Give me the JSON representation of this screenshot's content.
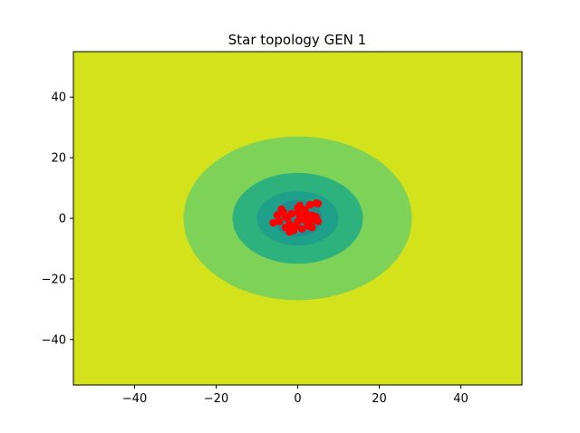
{
  "chart_data": {
    "type": "scatter",
    "title": "Star topology GEN 1",
    "xlabel": "",
    "ylabel": "",
    "xlim": [
      -55,
      55
    ],
    "ylim": [
      -55,
      55
    ],
    "xticks": [
      -40,
      -20,
      0,
      20,
      40
    ],
    "yticks": [
      -40,
      -20,
      0,
      20,
      40
    ],
    "tick_labels_x": [
      "−40",
      "−20",
      "0",
      "20",
      "40"
    ],
    "tick_labels_y": [
      "−40",
      "−20",
      "0",
      "20",
      "40"
    ],
    "grid": false,
    "background_contour": {
      "type": "filled-contour",
      "center": [
        0,
        0
      ],
      "levels": [
        {
          "radius_x": 56,
          "radius_y": 28,
          "color": "#d3e21a"
        },
        {
          "radius_x": 28,
          "radius_y": 27,
          "color": "#7ed257"
        },
        {
          "radius_x": 16,
          "radius_y": 15,
          "color": "#2db27d"
        },
        {
          "radius_x": 10,
          "radius_y": 9,
          "color": "#1fa08a"
        },
        {
          "radius_x": 6,
          "radius_y": 6,
          "color": "#228b8d"
        }
      ]
    },
    "series": [
      {
        "color": "#ff0000",
        "points": [
          [
            -4,
            3
          ],
          [
            -3.5,
            2
          ],
          [
            -5,
            1
          ],
          [
            -4.5,
            -1
          ],
          [
            -6,
            -1.5
          ],
          [
            -3,
            -3
          ],
          [
            -2,
            -4.5
          ],
          [
            -1,
            -3
          ],
          [
            -2.5,
            0
          ],
          [
            -1.5,
            1.5
          ],
          [
            0,
            3.5
          ],
          [
            0.5,
            4.2
          ],
          [
            0,
            2
          ],
          [
            1,
            0.5
          ],
          [
            0,
            -1
          ],
          [
            -0.5,
            -2.5
          ],
          [
            1.5,
            -0.5
          ],
          [
            2,
            1.5
          ],
          [
            2.5,
            -1.5
          ],
          [
            3,
            0
          ],
          [
            3.5,
            1
          ],
          [
            4,
            -0.5
          ],
          [
            4.5,
            0.5
          ],
          [
            3.5,
            -3
          ],
          [
            2.5,
            -2.5
          ],
          [
            1,
            -3.5
          ],
          [
            -1,
            -4
          ],
          [
            3,
            4.5
          ],
          [
            4.5,
            5
          ],
          [
            5,
            4.8
          ],
          [
            0.5,
            1
          ],
          [
            -3,
            0.5
          ],
          [
            -2,
            -2
          ],
          [
            1.8,
            2.8
          ],
          [
            5,
            -1
          ]
        ]
      }
    ]
  }
}
